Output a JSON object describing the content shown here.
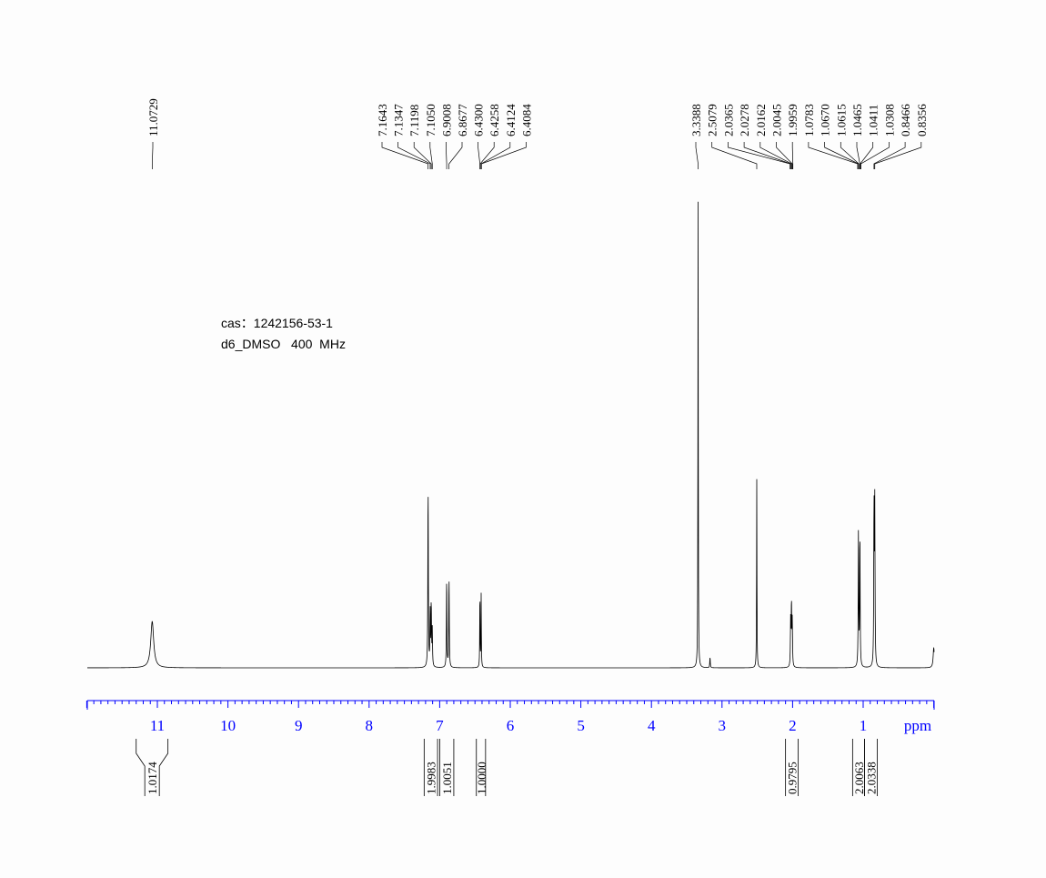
{
  "chart_data": {
    "type": "line",
    "title": "",
    "xlabel": "ppm",
    "xlim": [
      12,
      0
    ],
    "xticks": [
      11,
      10,
      9,
      8,
      7,
      6,
      5,
      4,
      3,
      2,
      1
    ],
    "grid": false,
    "axis_color": "#0000ff",
    "annotations": [
      "cas：1242156-53-1",
      "d6_DMSO   400  MHz"
    ],
    "peak_labels": [
      [
        "11.0729"
      ],
      [
        "7.1643",
        "7.1347",
        "7.1198",
        "7.1050",
        "6.9008",
        "6.8677",
        "6.4300",
        "6.4258",
        "6.4124",
        "6.4084"
      ],
      [
        "3.3388",
        "2.5079",
        "2.0365",
        "2.0278",
        "2.0162",
        "2.0045",
        "1.9959",
        "1.0783",
        "1.0670",
        "1.0615",
        "1.0465",
        "1.0411",
        "1.0308",
        "0.8466",
        "0.8356"
      ]
    ],
    "peaks": [
      {
        "ppm": 11.0729,
        "height": 51,
        "width": 0.025
      },
      {
        "ppm": 7.1643,
        "height": 205,
        "width": 0.004
      },
      {
        "ppm": 7.1347,
        "height": 60,
        "width": 0.004
      },
      {
        "ppm": 7.1198,
        "height": 70,
        "width": 0.004
      },
      {
        "ppm": 7.105,
        "height": 40,
        "width": 0.004
      },
      {
        "ppm": 6.9008,
        "height": 100,
        "width": 0.004
      },
      {
        "ppm": 6.8677,
        "height": 100,
        "width": 0.004
      },
      {
        "ppm": 6.43,
        "height": 88,
        "width": 0.003
      },
      {
        "ppm": 6.4124,
        "height": 80,
        "width": 0.003
      },
      {
        "ppm": 3.3388,
        "height": 513,
        "width": 0.003
      },
      {
        "ppm": 3.17,
        "height": 12,
        "width": 0.004
      },
      {
        "ppm": 2.5079,
        "height": 208,
        "width": 0.003
      },
      {
        "ppm": 2.0278,
        "height": 50,
        "width": 0.004
      },
      {
        "ppm": 2.0162,
        "height": 70,
        "width": 0.004
      },
      {
        "ppm": 2.0045,
        "height": 50,
        "width": 0.004
      },
      {
        "ppm": 1.067,
        "height": 150,
        "width": 0.004
      },
      {
        "ppm": 1.0465,
        "height": 150,
        "width": 0.004
      },
      {
        "ppm": 0.8466,
        "height": 180,
        "width": 0.004
      },
      {
        "ppm": 0.8356,
        "height": 175,
        "width": 0.004
      },
      {
        "ppm": 0.0,
        "height": 22,
        "width": 0.01
      }
    ],
    "integrals": [
      {
        "value": "1.0174",
        "from": 11.3,
        "to": 10.85
      },
      {
        "value": "1.9983",
        "from": 7.22,
        "to": 7.03
      },
      {
        "value": "1.0051",
        "from": 7.0,
        "to": 6.8
      },
      {
        "value": "1.0000",
        "from": 6.48,
        "to": 6.35
      },
      {
        "value": "0.9795",
        "from": 2.1,
        "to": 1.92
      },
      {
        "value": "2.0063",
        "from": 1.15,
        "to": 0.98
      },
      {
        "value": "2.0338",
        "from": 0.98,
        "to": 0.8
      }
    ]
  }
}
